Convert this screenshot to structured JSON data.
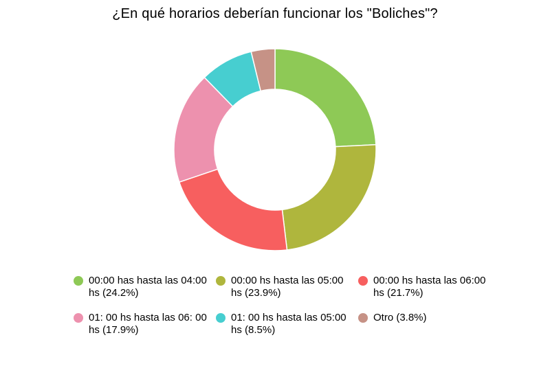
{
  "chart_data": {
    "type": "pie",
    "style": "donut",
    "title": "¿En qué horarios deberían funcionar los \"Boliches\"?",
    "legend_position": "bottom",
    "series": [
      {
        "label": "00:00 has hasta las 04:00 hs (24.2%)",
        "value": 24.2,
        "color": "#8ec956"
      },
      {
        "label": "00:00 hs hasta las 05:00 hs (23.9%)",
        "value": 23.9,
        "color": "#afb63d"
      },
      {
        "label": "00:00 hs hasta las 06:00 hs (21.7%)",
        "value": 21.7,
        "color": "#f75f5f"
      },
      {
        "label": "01: 00 hs hasta las 06: 00 hs (17.9%)",
        "value": 17.9,
        "color": "#ed91ae"
      },
      {
        "label": "01: 00 hs hasta las 05:00 hs (8.5%)",
        "value": 8.5,
        "color": "#47ced0"
      },
      {
        "label": "Otro (3.8%)",
        "value": 3.8,
        "color": "#c69286"
      }
    ]
  }
}
